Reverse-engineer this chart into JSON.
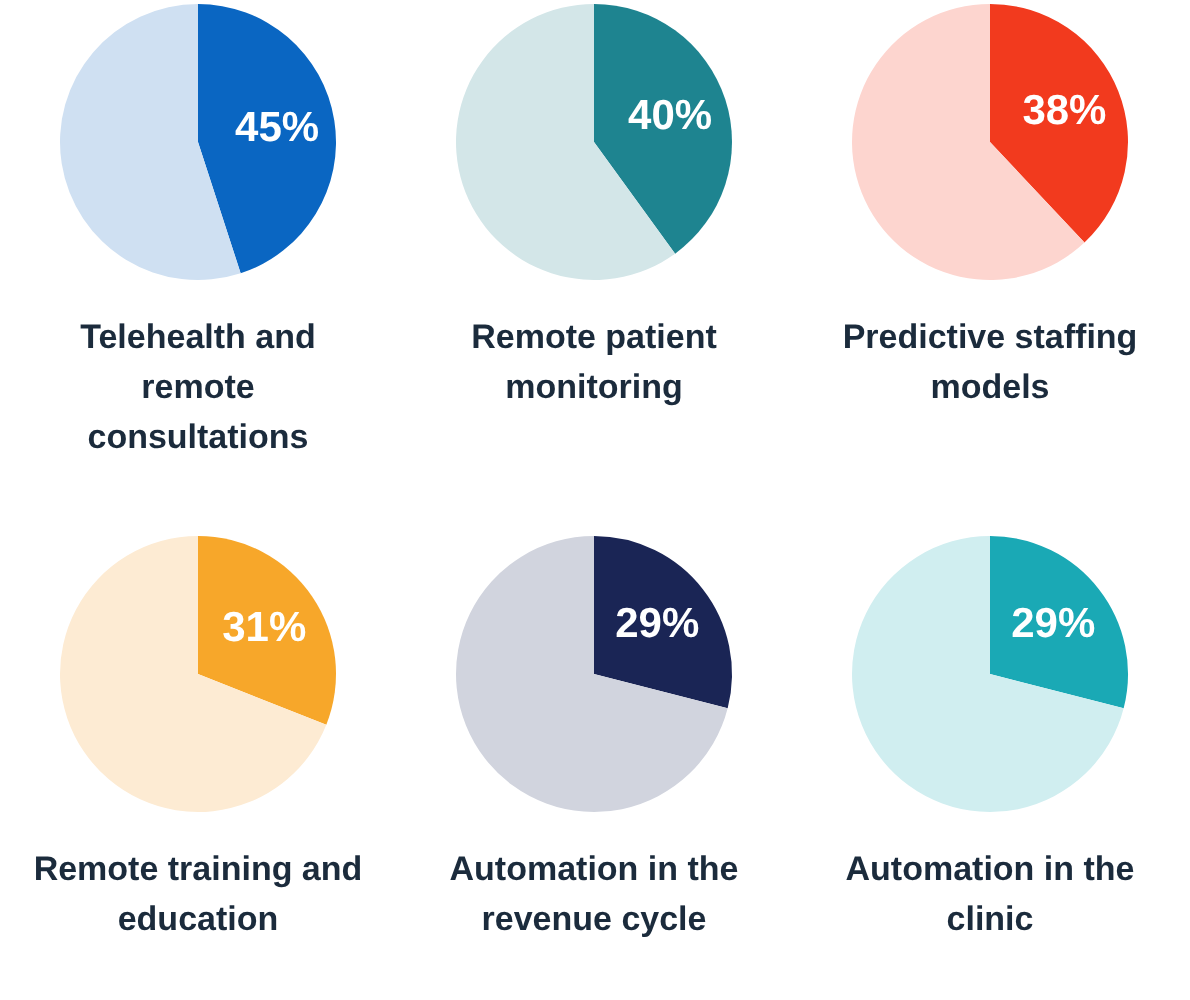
{
  "chart_data": [
    {
      "type": "pie",
      "title": "Telehealth and remote consultations",
      "categories": [
        null,
        null
      ],
      "values": [
        45,
        55
      ],
      "colors": [
        "#0a66c2",
        "#cfe0f2"
      ],
      "value_labels": [
        "45%",
        null
      ],
      "legend": false
    },
    {
      "type": "pie",
      "title": "Remote patient monitoring",
      "categories": [
        null,
        null
      ],
      "values": [
        40,
        60
      ],
      "colors": [
        "#1e8490",
        "#d3e6e8"
      ],
      "value_labels": [
        "40%",
        null
      ],
      "legend": false
    },
    {
      "type": "pie",
      "title": "Predictive staffing models",
      "categories": [
        null,
        null
      ],
      "values": [
        38,
        62
      ],
      "colors": [
        "#f23a1e",
        "#fdd5cf"
      ],
      "value_labels": [
        "38%",
        null
      ],
      "legend": false
    },
    {
      "type": "pie",
      "title": "Remote training and education",
      "categories": [
        null,
        null
      ],
      "values": [
        31,
        69
      ],
      "colors": [
        "#f7a72a",
        "#fdebd3"
      ],
      "value_labels": [
        "31%",
        null
      ],
      "legend": false
    },
    {
      "type": "pie",
      "title": "Automation in the revenue cycle",
      "categories": [
        null,
        null
      ],
      "values": [
        29,
        71
      ],
      "colors": [
        "#1a2555",
        "#d1d4de"
      ],
      "value_labels": [
        "29%",
        null
      ],
      "legend": false
    },
    {
      "type": "pie",
      "title": "Automation in the clinic",
      "categories": [
        null,
        null
      ],
      "values": [
        29,
        71
      ],
      "colors": [
        "#1aa9b5",
        "#d0eef0"
      ],
      "value_labels": [
        "29%",
        null
      ],
      "legend": false
    }
  ]
}
